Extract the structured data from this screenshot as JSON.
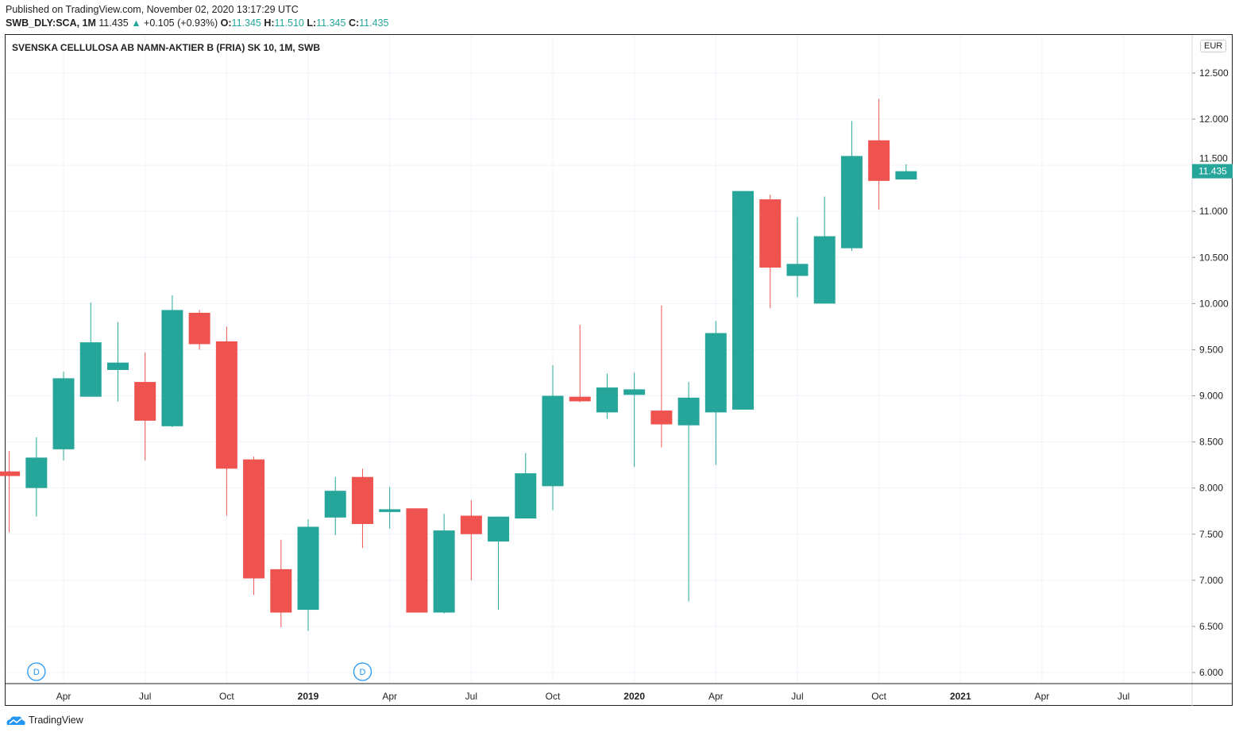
{
  "header": {
    "published": "Published on TradingView.com, November 02, 2020 13:17:29 UTC",
    "symbol": "SWB_DLY:SCA, 1M",
    "last": "11.435",
    "change": "+0.105 (+0.93%)",
    "o_label": "O:",
    "o": "11.345",
    "h_label": "H:",
    "h": "11.510",
    "l_label": "L:",
    "l": "11.345",
    "c_label": "C:",
    "c": "11.435"
  },
  "footer": {
    "brand": "TradingView"
  },
  "chart_data": {
    "type": "candlestick",
    "title": "SVENSKA CELLULOSA AB NAMN-AKTIER B (FRIA) SK 10, 1M, SWB",
    "currency": "EUR",
    "last_price_label": "11.435",
    "colors": {
      "up": "#26a69a",
      "down": "#ef5350"
    },
    "grid": true,
    "ylim": [
      5.85,
      12.85
    ],
    "y_ticks": [
      "6.000",
      "6.500",
      "7.000",
      "7.500",
      "8.000",
      "8.500",
      "9.000",
      "9.500",
      "10.000",
      "10.500",
      "11.000",
      "11.500",
      "12.000",
      "12.500"
    ],
    "x_ticks": [
      {
        "month_index": 2,
        "label": "Apr",
        "bold": false
      },
      {
        "month_index": 5,
        "label": "Jul",
        "bold": false
      },
      {
        "month_index": 8,
        "label": "Oct",
        "bold": false
      },
      {
        "month_index": 11,
        "label": "2019",
        "bold": true
      },
      {
        "month_index": 14,
        "label": "Apr",
        "bold": false
      },
      {
        "month_index": 17,
        "label": "Jul",
        "bold": false
      },
      {
        "month_index": 20,
        "label": "Oct",
        "bold": false
      },
      {
        "month_index": 23,
        "label": "2020",
        "bold": true
      },
      {
        "month_index": 26,
        "label": "Apr",
        "bold": false
      },
      {
        "month_index": 29,
        "label": "Jul",
        "bold": false
      },
      {
        "month_index": 32,
        "label": "Oct",
        "bold": false
      },
      {
        "month_index": 35,
        "label": "2021",
        "bold": true
      },
      {
        "month_index": 38,
        "label": "Apr",
        "bold": false
      },
      {
        "month_index": 41,
        "label": "Jul",
        "bold": false
      }
    ],
    "dividends": [
      {
        "month": "2018-03",
        "label": "D"
      },
      {
        "month": "2019-03",
        "label": "D"
      }
    ],
    "candles": [
      {
        "month": "2018-02",
        "o": 8.18,
        "h": 8.4,
        "l": 7.52,
        "c": 8.13
      },
      {
        "month": "2018-03",
        "o": 8.0,
        "h": 8.55,
        "l": 7.69,
        "c": 8.33
      },
      {
        "month": "2018-04",
        "o": 8.42,
        "h": 9.26,
        "l": 8.3,
        "c": 9.19
      },
      {
        "month": "2018-05",
        "o": 8.99,
        "h": 10.01,
        "l": 8.99,
        "c": 9.58
      },
      {
        "month": "2018-06",
        "o": 9.28,
        "h": 9.8,
        "l": 8.94,
        "c": 9.36
      },
      {
        "month": "2018-07",
        "o": 9.15,
        "h": 9.47,
        "l": 8.3,
        "c": 8.73
      },
      {
        "month": "2018-08",
        "o": 8.67,
        "h": 10.09,
        "l": 8.66,
        "c": 9.93
      },
      {
        "month": "2018-09",
        "o": 9.9,
        "h": 9.93,
        "l": 9.5,
        "c": 9.56
      },
      {
        "month": "2018-10",
        "o": 9.59,
        "h": 9.75,
        "l": 7.7,
        "c": 8.21
      },
      {
        "month": "2018-11",
        "o": 8.31,
        "h": 8.34,
        "l": 6.84,
        "c": 7.02
      },
      {
        "month": "2018-12",
        "o": 7.12,
        "h": 7.44,
        "l": 6.49,
        "c": 6.65
      },
      {
        "month": "2019-01",
        "o": 6.68,
        "h": 7.66,
        "l": 6.45,
        "c": 7.58
      },
      {
        "month": "2019-02",
        "o": 7.68,
        "h": 8.12,
        "l": 7.49,
        "c": 7.97
      },
      {
        "month": "2019-03",
        "o": 8.12,
        "h": 8.21,
        "l": 7.35,
        "c": 7.61
      },
      {
        "month": "2019-04",
        "o": 7.74,
        "h": 8.01,
        "l": 7.56,
        "c": 7.77
      },
      {
        "month": "2019-05",
        "o": 7.78,
        "h": 7.78,
        "l": 6.65,
        "c": 6.65
      },
      {
        "month": "2019-06",
        "o": 6.65,
        "h": 7.72,
        "l": 6.64,
        "c": 7.54
      },
      {
        "month": "2019-07",
        "o": 7.7,
        "h": 7.87,
        "l": 7.0,
        "c": 7.5
      },
      {
        "month": "2019-08",
        "o": 7.42,
        "h": 7.69,
        "l": 6.68,
        "c": 7.69
      },
      {
        "month": "2019-09",
        "o": 7.67,
        "h": 8.38,
        "l": 7.67,
        "c": 8.16
      },
      {
        "month": "2019-10",
        "o": 8.02,
        "h": 9.33,
        "l": 7.76,
        "c": 9.0
      },
      {
        "month": "2019-11",
        "o": 8.99,
        "h": 9.77,
        "l": 8.93,
        "c": 8.94
      },
      {
        "month": "2019-12",
        "o": 8.82,
        "h": 9.24,
        "l": 8.75,
        "c": 9.09
      },
      {
        "month": "2020-01",
        "o": 9.01,
        "h": 9.25,
        "l": 8.23,
        "c": 9.07
      },
      {
        "month": "2020-02",
        "o": 8.84,
        "h": 9.98,
        "l": 8.44,
        "c": 8.69
      },
      {
        "month": "2020-03",
        "o": 8.68,
        "h": 9.15,
        "l": 6.77,
        "c": 8.98
      },
      {
        "month": "2020-04",
        "o": 8.82,
        "h": 9.81,
        "l": 8.25,
        "c": 9.68
      },
      {
        "month": "2020-05",
        "o": 8.85,
        "h": 11.22,
        "l": 8.85,
        "c": 11.22
      },
      {
        "month": "2020-06",
        "o": 11.13,
        "h": 11.18,
        "l": 9.95,
        "c": 10.39
      },
      {
        "month": "2020-07",
        "o": 10.3,
        "h": 10.94,
        "l": 10.07,
        "c": 10.43
      },
      {
        "month": "2020-08",
        "o": 10.0,
        "h": 11.16,
        "l": 10.0,
        "c": 10.73
      },
      {
        "month": "2020-09",
        "o": 10.6,
        "h": 11.98,
        "l": 10.57,
        "c": 11.6
      },
      {
        "month": "2020-10",
        "o": 11.77,
        "h": 12.22,
        "l": 11.02,
        "c": 11.33
      },
      {
        "month": "2020-11",
        "o": 11.345,
        "h": 11.51,
        "l": 11.345,
        "c": 11.435
      }
    ]
  }
}
